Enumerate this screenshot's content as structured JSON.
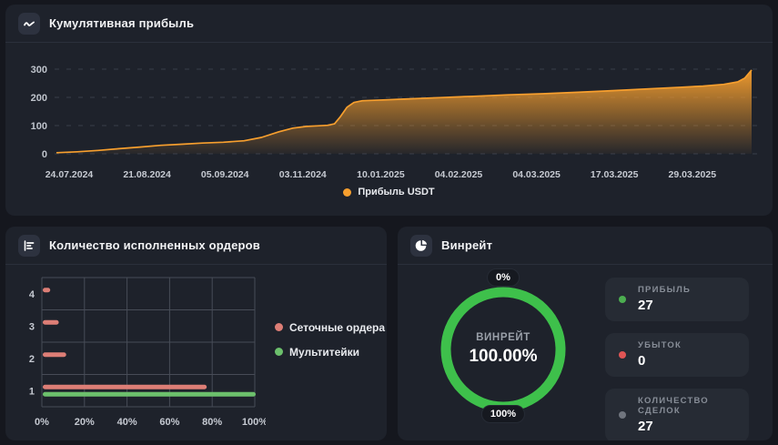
{
  "panels": {
    "cumulative": {
      "title": "Кумулятивная прибыль",
      "legend": [
        {
          "label": "Прибыль USDT",
          "color": "#f79f2e"
        }
      ]
    },
    "orders": {
      "title": "Количество исполненных ордеров",
      "legend": [
        {
          "label": "Сеточные ордера",
          "color": "#dd7e76"
        },
        {
          "label": "Мультитейки",
          "color": "#6cc06c"
        }
      ]
    },
    "winrate": {
      "title": "Винрейт",
      "gauge": {
        "top_label": "0%",
        "bottom_label": "100%",
        "center_label": "ВИНРЕЙТ",
        "center_value": "100.00%",
        "ring_color": "#3ec04b",
        "value_pct": 100
      },
      "stats": [
        {
          "label": "ПРИБЫЛЬ",
          "value": "27",
          "dot_color": "#4cae50"
        },
        {
          "label": "УБЫТОК",
          "value": "0",
          "dot_color": "#e05555"
        },
        {
          "label": "КОЛИЧЕСТВО СДЕЛОК",
          "value": "27",
          "dot_color": "#70757e"
        }
      ]
    }
  },
  "chart_data": [
    {
      "type": "area",
      "title": "Кумулятивная прибыль",
      "ylabel": "Прибыль USDT",
      "y_ticks": [
        0,
        100,
        200,
        300
      ],
      "ylim": [
        0,
        320
      ],
      "grid": "horizontal-dashed",
      "legend_position": "bottom-center",
      "x_tick_labels": [
        "24.07.2024",
        "21.08.2024",
        "05.09.2024",
        "03.11.2024",
        "10.01.2025",
        "04.02.2025",
        "04.03.2025",
        "17.03.2025",
        "29.03.2025"
      ],
      "series": [
        {
          "name": "Прибыль USDT",
          "color": "#f79f2e",
          "points": [
            [
              0,
              4
            ],
            [
              0.03,
              7
            ],
            [
              0.06,
              12
            ],
            [
              0.09,
              18
            ],
            [
              0.12,
              24
            ],
            [
              0.15,
              30
            ],
            [
              0.18,
              34
            ],
            [
              0.21,
              38
            ],
            [
              0.24,
              41
            ],
            [
              0.27,
              46
            ],
            [
              0.295,
              58
            ],
            [
              0.32,
              78
            ],
            [
              0.34,
              91
            ],
            [
              0.36,
              97
            ],
            [
              0.375,
              99
            ],
            [
              0.39,
              101
            ],
            [
              0.4,
              106
            ],
            [
              0.408,
              130
            ],
            [
              0.418,
              165
            ],
            [
              0.428,
              182
            ],
            [
              0.44,
              188
            ],
            [
              0.47,
              191
            ],
            [
              0.5,
              194
            ],
            [
              0.55,
              199
            ],
            [
              0.6,
              204
            ],
            [
              0.65,
              209
            ],
            [
              0.7,
              213
            ],
            [
              0.75,
              218
            ],
            [
              0.8,
              224
            ],
            [
              0.85,
              230
            ],
            [
              0.9,
              236
            ],
            [
              0.93,
              240
            ],
            [
              0.96,
              246
            ],
            [
              0.98,
              255
            ],
            [
              0.99,
              268
            ],
            [
              1.0,
              297
            ]
          ]
        }
      ]
    },
    {
      "type": "bar",
      "orientation": "horizontal",
      "title": "Количество исполненных ордеров",
      "categories": [
        "4",
        "3",
        "2",
        "1"
      ],
      "x_tick_values": [
        0,
        20,
        40,
        60,
        80,
        100
      ],
      "x_ticks": [
        "0%",
        "20%",
        "40%",
        "60%",
        "80%",
        "100%"
      ],
      "xlim": [
        0,
        100
      ],
      "grid": "full",
      "series": [
        {
          "name": "Сеточные ордера",
          "color": "#dd7e76",
          "values": [
            3.5,
            7.5,
            11,
            77
          ]
        },
        {
          "name": "Мультитейки",
          "color": "#6cc06c",
          "values": [
            0,
            0,
            0,
            100
          ]
        }
      ]
    },
    {
      "type": "donut",
      "title": "Винрейт",
      "value_pct": 100.0,
      "display_value": "100.00%",
      "color": "#3ec04b",
      "track_color": "#2a2e38"
    }
  ]
}
